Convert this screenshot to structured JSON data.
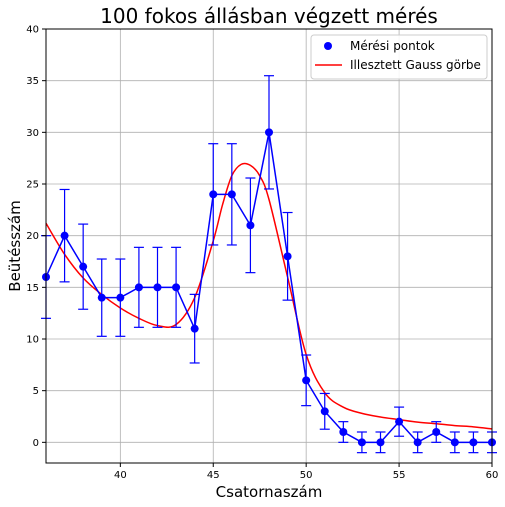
{
  "chart_data": {
    "type": "scatter",
    "title": "100 fokos állásban végzett mérés",
    "xlabel": "Csatornaszám",
    "ylabel": "Beütésszám",
    "xlim": [
      36,
      60
    ],
    "ylim": [
      -2,
      40
    ],
    "xticks": [
      40,
      45,
      50,
      55,
      60
    ],
    "yticks": [
      0,
      5,
      10,
      15,
      20,
      25,
      30,
      35,
      40
    ],
    "grid": true,
    "legend_position": "top-right",
    "colors": {
      "points": "#0000ff",
      "fit": "#ff0000",
      "grid": "#b0b0b0"
    },
    "series": [
      {
        "name": "Mérési pontok",
        "kind": "errorbar",
        "x": [
          36,
          37,
          38,
          39,
          40,
          41,
          42,
          43,
          44,
          45,
          46,
          47,
          48,
          49,
          50,
          51,
          52,
          53,
          54,
          55,
          56,
          57,
          58,
          59,
          60
        ],
        "y": [
          16,
          20,
          17,
          14,
          14,
          15,
          15,
          15,
          11,
          24,
          24,
          21,
          30,
          18,
          6,
          3,
          1,
          0,
          0,
          2,
          0,
          1,
          0,
          0,
          0
        ],
        "yerr": [
          4.0,
          4.47,
          4.12,
          3.74,
          3.74,
          3.87,
          3.87,
          3.87,
          3.32,
          4.9,
          4.9,
          4.58,
          5.48,
          4.24,
          2.45,
          1.73,
          1.0,
          1.0,
          1.0,
          1.41,
          1.0,
          1.0,
          1.0,
          1.0,
          1.0
        ]
      },
      {
        "name": "Illesztett Gauss görbe",
        "kind": "line",
        "x": [
          36,
          37,
          38,
          39,
          40,
          41,
          42,
          43,
          44,
          45,
          45.5,
          46,
          46.5,
          47,
          47.5,
          48,
          49,
          50,
          51,
          52,
          53,
          54,
          55,
          56,
          57,
          58,
          59,
          60
        ],
        "y": [
          21.2,
          18.2,
          15.9,
          14.3,
          13.0,
          12.0,
          11.3,
          11.4,
          14.0,
          19.5,
          23.0,
          25.8,
          26.9,
          26.8,
          25.8,
          23.5,
          16.0,
          8.5,
          4.8,
          3.4,
          2.8,
          2.45,
          2.2,
          1.95,
          1.8,
          1.62,
          1.5,
          1.3
        ]
      }
    ]
  }
}
